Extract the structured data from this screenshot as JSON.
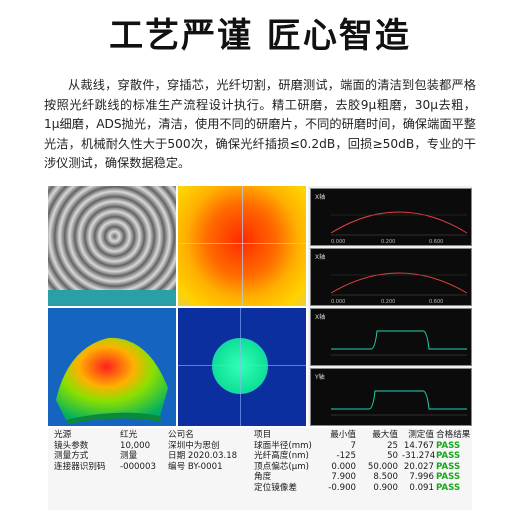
{
  "headline": "工艺严谨  匠心智造",
  "paragraph": "从裁线，穿散件，穿插芯，光纤切割，研磨测试，端面的清洁到包装都严格按照光纤跳线的标准生产流程设计执行。精工研磨，去胶9μ粗磨，30μ去粗，1μ细磨，ADS抛光，清洁，使用不同的研磨片，不同的研磨时间，确保端面平整光洁，机械耐久性大于500次，确保光纤插损≤0.2dB，回损≥50dB，专业的干涉仪测试，确保数据稳定。",
  "colors": {
    "pass": "#1aa81a",
    "plot_curve_red": "#e0403a",
    "plot_curve_cyan": "#27d0b0"
  },
  "plots": [
    {
      "axis_label": "X轴",
      "ticks": [
        "0.000",
        "0.200",
        "0.600"
      ]
    },
    {
      "axis_label": "X轴",
      "ticks": [
        "0.000",
        "0.200",
        "0.600"
      ]
    },
    {
      "axis_label": "X轴",
      "ticks": [
        "",
        "",
        ""
      ]
    },
    {
      "axis_label": "Y轴",
      "ticks": [
        "",
        "",
        ""
      ]
    }
  ],
  "info_left": {
    "labels": [
      "光源",
      "镜头参数",
      "测量方式",
      "连接器识别码"
    ],
    "values": [
      "红光",
      "10,000",
      "测量",
      "-000003"
    ]
  },
  "info_mid": {
    "lines": [
      "公司名",
      "深圳中为思创",
      "日期  2020.03.18",
      "编号  BY-0001"
    ]
  },
  "results": {
    "headers": [
      "项目",
      "最小值",
      "最大值",
      "测定值",
      "合格结果"
    ],
    "rows": [
      {
        "item": "球面半径(mm)",
        "min": "7",
        "max": "25",
        "value": "14.767",
        "result": "PASS"
      },
      {
        "item": "光纤高度(nm)",
        "min": "-125",
        "max": "50",
        "value": "-31.274",
        "result": "PASS"
      },
      {
        "item": "顶点偏芯(μm)",
        "min": "0.000",
        "max": "50.000",
        "value": "20.027",
        "result": "PASS"
      },
      {
        "item": "角度",
        "min": "7.900",
        "max": "8.500",
        "value": "7.996",
        "result": "PASS"
      },
      {
        "item": "定位镜像差",
        "min": "-0.900",
        "max": "0.900",
        "value": "0.091",
        "result": "PASS"
      }
    ]
  }
}
